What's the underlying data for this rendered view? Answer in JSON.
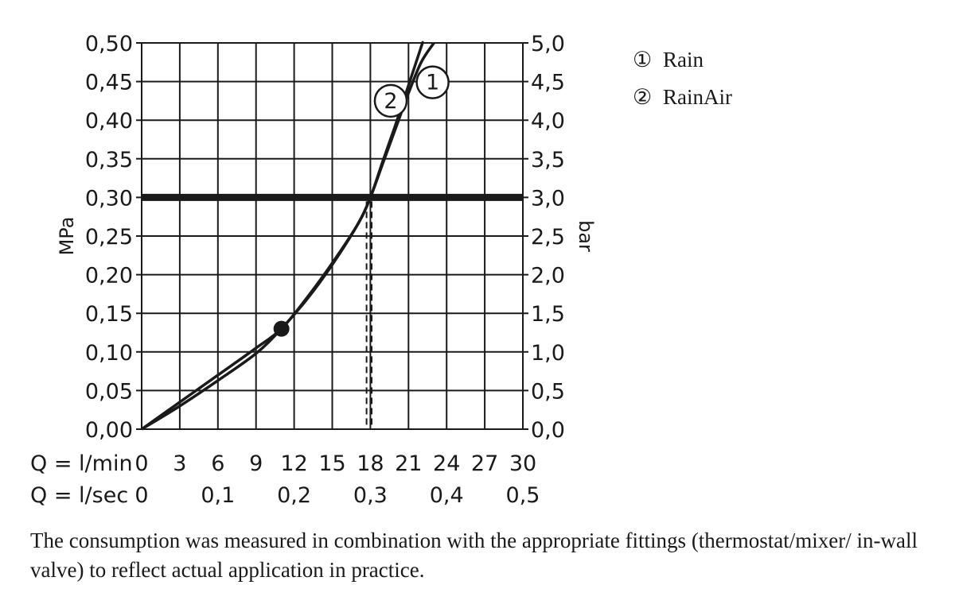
{
  "chart_data": {
    "type": "line",
    "title": "",
    "xlabel_rows": [
      {
        "label": "Q = l/min",
        "ticks": [
          "0",
          "3",
          "6",
          "9",
          "12",
          "15",
          "18",
          "21",
          "24",
          "27",
          "30"
        ]
      },
      {
        "label": "Q = l/sec",
        "ticks": [
          "0",
          "0,1",
          "0,2",
          "0,3",
          "0,4",
          "0,5"
        ]
      }
    ],
    "ylabel_left": "MPa",
    "ylabel_right": "bar",
    "left_ticks": [
      "0,00",
      "0,05",
      "0,10",
      "0,15",
      "0,20",
      "0,25",
      "0,30",
      "0,35",
      "0,40",
      "0,45",
      "0,50"
    ],
    "right_ticks": [
      "0,0",
      "0,5",
      "1,0",
      "1,5",
      "2,0",
      "2,5",
      "3,0",
      "3,5",
      "4,0",
      "4,5",
      "5,0"
    ],
    "xlim": [
      0,
      30
    ],
    "ylim": [
      0,
      0.5
    ],
    "reference_line": {
      "y": 0.3
    },
    "operating_point": {
      "x": 11,
      "y": 0.13
    },
    "dashed_markers": [
      17.7,
      18.1
    ],
    "series": [
      {
        "name": "Rain",
        "marker": "1",
        "points": [
          [
            0,
            0
          ],
          [
            3,
            0.035
          ],
          [
            6,
            0.07
          ],
          [
            9,
            0.105
          ],
          [
            11,
            0.13
          ],
          [
            13,
            0.17
          ],
          [
            15,
            0.215
          ],
          [
            17,
            0.265
          ],
          [
            18,
            0.3
          ],
          [
            19,
            0.345
          ],
          [
            20,
            0.39
          ],
          [
            21,
            0.435
          ],
          [
            22,
            0.475
          ],
          [
            23.0,
            0.5
          ]
        ],
        "label_at": [
          22.9,
          0.449
        ]
      },
      {
        "name": "RainAir",
        "marker": "2",
        "points": [
          [
            0,
            0
          ],
          [
            3,
            0.03
          ],
          [
            6,
            0.063
          ],
          [
            9,
            0.098
          ],
          [
            11,
            0.13
          ],
          [
            13,
            0.168
          ],
          [
            15,
            0.213
          ],
          [
            17,
            0.265
          ],
          [
            18,
            0.3
          ],
          [
            19,
            0.348
          ],
          [
            20,
            0.395
          ],
          [
            21,
            0.445
          ],
          [
            22,
            0.495
          ],
          [
            22.1,
            0.5
          ]
        ],
        "label_at": [
          19.6,
          0.425
        ]
      }
    ]
  },
  "legend": [
    {
      "symbol": "①",
      "label": "Rain"
    },
    {
      "symbol": "②",
      "label": "RainAir"
    }
  ],
  "caption": "The consumption was measured in combination with the appropriate fittings (thermostat/mixer/ in-wall valve) to reflect actual application in practice."
}
